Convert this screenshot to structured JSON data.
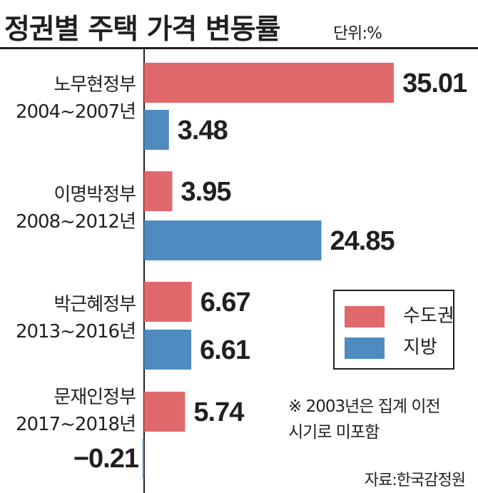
{
  "title": "정권별 주택 가격 변동률",
  "unit": "단위:%",
  "chart_data": {
    "type": "bar",
    "orientation": "horizontal",
    "categories": [
      [
        "노무현정부",
        "2004~2007년"
      ],
      [
        "이명박정부",
        "2008~2012년"
      ],
      [
        "박근혜정부",
        "2013~2016년"
      ],
      [
        "문재인정부",
        "2017~2018년"
      ]
    ],
    "series": [
      {
        "name": "수도권",
        "color": "#e0696b",
        "values": [
          35.01,
          3.95,
          6.67,
          5.74
        ]
      },
      {
        "name": "지방",
        "color": "#4f8bc0",
        "values": [
          3.48,
          24.85,
          6.61,
          -0.21
        ]
      }
    ],
    "value_labels": [
      [
        "35.01",
        "3.95",
        "6.67",
        "5.74"
      ],
      [
        "3.48",
        "24.85",
        "6.61",
        "−0.21"
      ]
    ],
    "legend_position": "right"
  },
  "note": [
    "※ 2003년은 집계 이전",
    "시기로 미포함"
  ],
  "source": "자료:한국감정원"
}
